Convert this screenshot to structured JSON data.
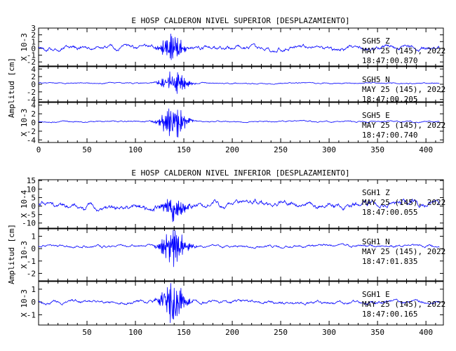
{
  "chart_data": [
    {
      "type": "line",
      "title": "E HOSP CALDERON NIVEL SUPERIOR [DESPLAZAMIENTO]",
      "ylabel": "Amplitud [cm]",
      "xlim": [
        0,
        418
      ],
      "x_ticks": [
        0,
        50,
        100,
        150,
        200,
        250,
        300,
        350,
        400
      ],
      "line_color": "#0000ff",
      "grid": false,
      "panels": [
        {
          "station": "SGH5",
          "component": "Z",
          "date": "MAY 25 (145), 2022",
          "time": "18:47:00.870",
          "scale_label": "X 10-3",
          "ylim": [
            -2.6,
            3
          ],
          "y_ticks": [
            -2,
            -1,
            0,
            1,
            2,
            3
          ],
          "signal": {
            "baseline": 0.0,
            "noise": 0.6,
            "burst": 1.9,
            "burst_center": 138,
            "burst_width": 10,
            "swell": 0.5
          }
        },
        {
          "station": "SGH5",
          "component": "N",
          "date": "MAY 25 (145), 2022",
          "time": "18:47:00.205",
          "scale_label": "",
          "ylim": [
            -4.6,
            4.6
          ],
          "y_ticks": [
            -4,
            -2,
            0,
            2,
            4
          ],
          "signal": {
            "baseline": 0.3,
            "noise": 0.3,
            "burst": 2.8,
            "burst_center": 140,
            "burst_width": 12,
            "swell": 0.2
          }
        },
        {
          "station": "SGH5",
          "component": "E",
          "date": "MAY 25 (145), 2022",
          "time": "18:47:00.740",
          "scale_label": "X 10-3",
          "ylim": [
            -4.6,
            4.6
          ],
          "y_ticks": [
            -4,
            -2,
            0,
            2,
            4
          ],
          "signal": {
            "baseline": 0.2,
            "noise": 0.3,
            "burst": 3.2,
            "burst_center": 139,
            "burst_width": 12,
            "swell": 0.2
          }
        }
      ]
    },
    {
      "type": "line",
      "title": "E HOSP CALDERON NIVEL INFERIOR [DESPLAZAMIENTO]",
      "ylabel": "Amplitud [cm]",
      "xlim": [
        0,
        418
      ],
      "x_ticks": [
        50,
        100,
        150,
        200,
        250,
        300,
        350,
        400
      ],
      "line_color": "#0000ff",
      "grid": false,
      "panels": [
        {
          "station": "SGH1",
          "component": "Z",
          "date": "MAY 25 (145), 2022",
          "time": "18:47:00.055",
          "scale_label": "X 10-4",
          "ylim": [
            -13,
            15.5
          ],
          "y_ticks": [
            -10,
            -5,
            0,
            5,
            10,
            15
          ],
          "signal": {
            "baseline": 0.5,
            "noise": 3.2,
            "burst": 5,
            "burst_center": 140,
            "burst_width": 12,
            "swell": 4
          }
        },
        {
          "station": "SGH1",
          "component": "N",
          "date": "MAY 25 (145), 2022",
          "time": "18:47:01.835",
          "scale_label": "X 10-3",
          "ylim": [
            -2.6,
            1.6
          ],
          "y_ticks": [
            -2,
            -1,
            0,
            1
          ],
          "signal": {
            "baseline": 0.2,
            "noise": 0.2,
            "burst": 1.3,
            "burst_center": 140,
            "burst_width": 12,
            "swell": 0.1
          }
        },
        {
          "station": "SGH1",
          "component": "E",
          "date": "MAY 25 (145), 2022",
          "time": "18:47:00.165",
          "scale_label": "X 10-3",
          "ylim": [
            -1.8,
            1.6
          ],
          "y_ticks": [
            -1,
            0,
            1
          ],
          "signal": {
            "baseline": 0.0,
            "noise": 0.25,
            "burst": 1.2,
            "burst_center": 139,
            "burst_width": 12,
            "swell": 0.1
          }
        }
      ]
    }
  ]
}
